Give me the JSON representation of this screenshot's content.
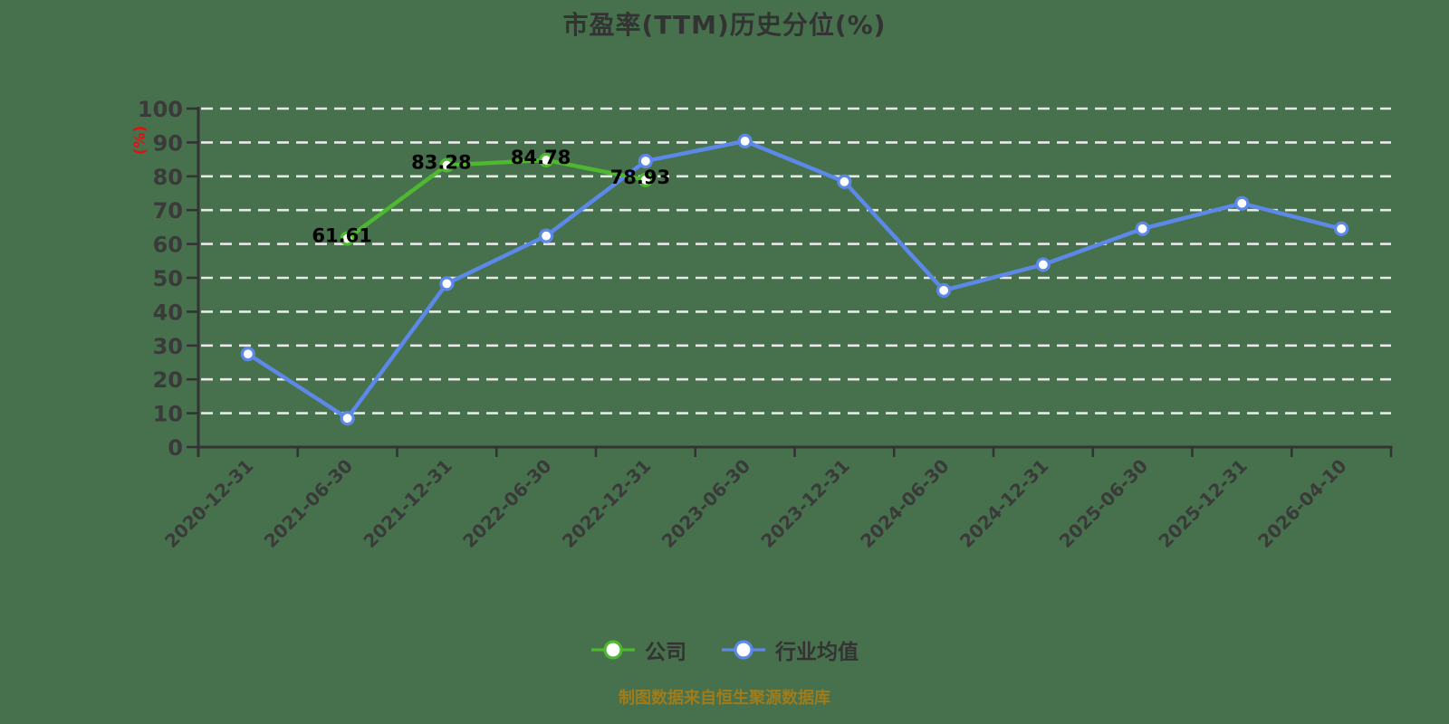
{
  "title": "市盈率(TTM)历史分位(%)",
  "y_axis_unit": "(%)",
  "footer_note": "制图数据来自恒生聚源数据库",
  "colors": {
    "background": "#47704D",
    "grid": "#E9E9E9",
    "axis": "#333333",
    "tick_label": "#3A3A3A",
    "title_text": "#333333",
    "unit_label": "#E01212",
    "footer_text": "#9E7C1C",
    "data_label": "#000000",
    "company_series": "#4DB830",
    "industry_series": "#5C88E8"
  },
  "legend": {
    "items": [
      {
        "label": "公司",
        "color": "#4DB830"
      },
      {
        "label": "行业均值",
        "color": "#5C88E8"
      }
    ]
  },
  "chart_data": {
    "type": "line",
    "title": "市盈率(TTM)历史分位(%)",
    "ylabel": "(%)",
    "ylim": [
      0,
      100
    ],
    "yticks": [
      0,
      10,
      20,
      30,
      40,
      50,
      60,
      70,
      80,
      90,
      100
    ],
    "grid": "horizontal-dashed",
    "legend_position": "bottom",
    "categories": [
      "2020-12-31",
      "2021-06-30",
      "2021-12-31",
      "2022-06-30",
      "2022-12-31",
      "2023-06-30",
      "2023-12-31",
      "2024-06-30",
      "2024-12-31",
      "2025-06-30",
      "2025-12-31",
      "2026-04-10"
    ],
    "series": [
      {
        "name": "公司",
        "color": "#4DB830",
        "show_labels": true,
        "values": [
          null,
          61.61,
          83.28,
          84.78,
          78.93,
          null,
          null,
          null,
          null,
          null,
          null,
          null
        ]
      },
      {
        "name": "行业均值",
        "color": "#5C88E8",
        "show_labels": false,
        "values": [
          27.5,
          8.5,
          48.3,
          62.4,
          84.5,
          90.4,
          78.4,
          46.3,
          53.9,
          64.5,
          72.0,
          64.5
        ]
      }
    ]
  }
}
